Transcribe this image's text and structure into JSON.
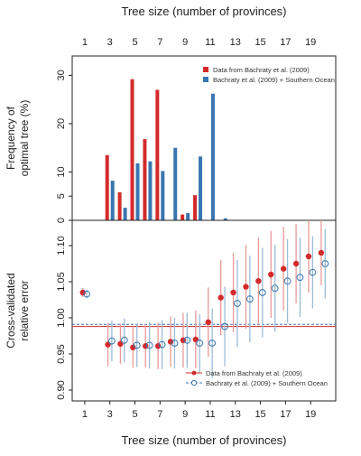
{
  "figure": {
    "top_xlabel": "Tree size (number of provinces)",
    "bottom_xlabel": "Tree size (number of provinces)"
  },
  "chart_data": [
    {
      "type": "bar",
      "panel": "top",
      "ylabel": [
        "Frequency of",
        "optimal tree (%)"
      ],
      "xlim": [
        0,
        21
      ],
      "ylim": [
        0,
        34
      ],
      "yticks": [
        0,
        5,
        10,
        20,
        30
      ],
      "xticks": [
        1,
        3,
        5,
        7,
        9,
        11,
        13,
        15,
        17,
        19
      ],
      "legend": "top-right",
      "series": [
        {
          "name": "Data from Bachraty et al. (2009)",
          "color": "#d42a2a",
          "x": [
            3,
            4,
            5,
            6,
            7,
            8,
            9,
            10,
            11
          ],
          "values": [
            13.5,
            5.8,
            29.2,
            16.8,
            27.0,
            0,
            1.2,
            5.2,
            0
          ]
        },
        {
          "name": "Bachraty et al. (2009) + Southern Ocean",
          "color": "#3a76b0",
          "x": [
            3,
            4,
            5,
            6,
            7,
            8,
            9,
            10,
            11,
            12
          ],
          "values": [
            8.2,
            2.6,
            11.8,
            12.2,
            10.2,
            15.0,
            1.5,
            13.2,
            26.2,
            0.4
          ]
        }
      ]
    },
    {
      "type": "scatter",
      "panel": "bottom",
      "ylabel": [
        "Cross-validated",
        "relative error"
      ],
      "xlim": [
        0,
        21
      ],
      "ylim": [
        0.885,
        1.135
      ],
      "yticks": [
        0.9,
        0.95,
        1.0,
        1.05,
        1.1
      ],
      "ytick_labels": [
        "0.90",
        "0.95",
        "1.00",
        "1.05",
        "1.10"
      ],
      "xticks": [
        1,
        3,
        5,
        7,
        9,
        11,
        13,
        15,
        17,
        19
      ],
      "legend": "bottom-right",
      "reference_lines": [
        {
          "y": 0.988,
          "color": "#d42a2a",
          "style": "solid"
        },
        {
          "y": 0.991,
          "color": "#3a76b0",
          "style": "dashed"
        }
      ],
      "series": [
        {
          "name": "Data from Bachraty et al. (2009)",
          "color": "#d42a2a",
          "marker": "filled-circle",
          "x": [
            1,
            3,
            4,
            5,
            6,
            7,
            8,
            9,
            10,
            11,
            12,
            13,
            14,
            15,
            16,
            17,
            18,
            19,
            20
          ],
          "y": [
            1.035,
            0.963,
            0.964,
            0.959,
            0.961,
            0.961,
            0.967,
            0.969,
            0.97,
            0.994,
            1.028,
            1.035,
            1.043,
            1.051,
            1.06,
            1.068,
            1.075,
            1.085,
            1.09
          ],
          "err": [
            0.006,
            0.03,
            0.028,
            0.028,
            0.03,
            0.032,
            0.035,
            0.038,
            0.04,
            0.048,
            0.052,
            0.055,
            0.058,
            0.06,
            0.06,
            0.058,
            0.055,
            0.05,
            0.045
          ]
        },
        {
          "name": "Bachraty et al. (2009) + Southern Ocean",
          "color": "#3a76b0",
          "marker": "open-circle",
          "x": [
            1,
            3,
            4,
            5,
            6,
            7,
            8,
            9,
            10,
            11,
            12,
            13,
            14,
            15,
            16,
            17,
            18,
            19,
            20
          ],
          "y": [
            1.033,
            0.968,
            0.969,
            0.962,
            0.962,
            0.963,
            0.965,
            0.969,
            0.965,
            0.965,
            0.988,
            1.02,
            1.026,
            1.035,
            1.041,
            1.051,
            1.056,
            1.063,
            1.075
          ],
          "err": [
            0.006,
            0.028,
            0.03,
            0.03,
            0.032,
            0.034,
            0.035,
            0.038,
            0.04,
            0.048,
            0.055,
            0.06,
            0.06,
            0.062,
            0.06,
            0.058,
            0.055,
            0.05,
            0.048
          ]
        }
      ]
    }
  ]
}
